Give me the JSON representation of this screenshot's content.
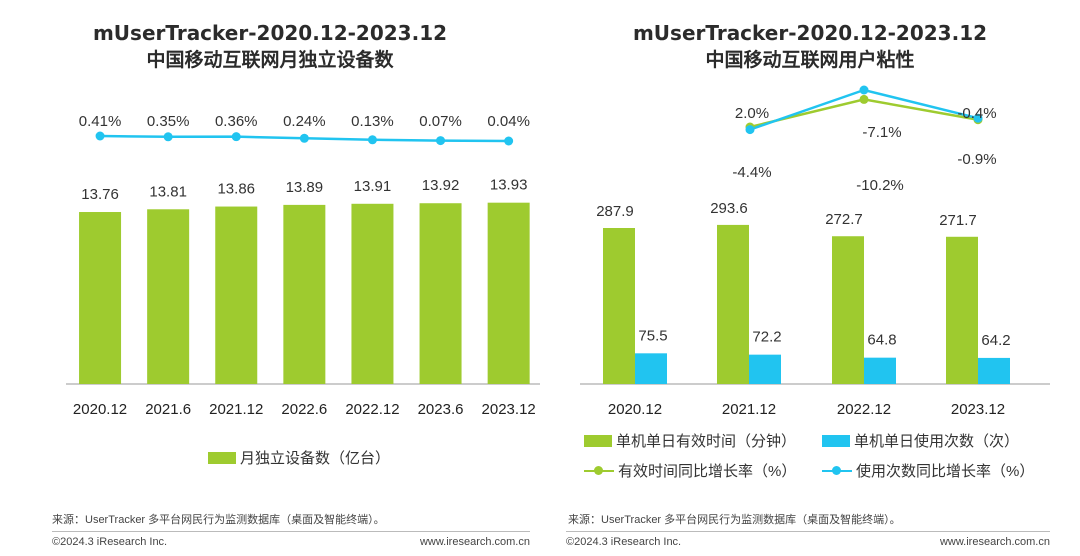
{
  "colors": {
    "bar_green": "#9ECB2F",
    "bar_blue": "#21C4F0",
    "line_green": "#9ECB2F",
    "line_blue": "#21C4F0"
  },
  "left": {
    "title_line1": "mUserTracker-2020.12-2023.12",
    "title_line2": "中国移动互联网月独立设备数",
    "legend": "月独立设备数（亿台）",
    "source": "来源：UserTracker 多平台网民行为监测数据库（桌面及智能终端）。",
    "copyright": "©2024.3 iResearch Inc.",
    "website": "www.iresearch.com.cn"
  },
  "right": {
    "title_line1": "mUserTracker-2020.12-2023.12",
    "title_line2": "中国移动互联网用户粘性",
    "legend_bar1": "单机单日有效时间（分钟）",
    "legend_bar2": "单机单日使用次数（次）",
    "legend_line1": "有效时间同比增长率（%）",
    "legend_line2": "使用次数同比增长率（%）",
    "source": "来源：UserTracker 多平台网民行为监测数据库（桌面及智能终端）。",
    "copyright": "©2024.3 iResearch Inc.",
    "website": "www.iresearch.com.cn"
  },
  "chart_data": [
    {
      "type": "bar",
      "title": "mUserTracker-2020.12-2023.12 中国移动互联网月独立设备数",
      "categories": [
        "2020.12",
        "2021.6",
        "2021.12",
        "2022.6",
        "2022.12",
        "2023.6",
        "2023.12"
      ],
      "series": [
        {
          "name": "月独立设备数（亿台）",
          "type": "bar",
          "values": [
            13.76,
            13.81,
            13.86,
            13.89,
            13.91,
            13.92,
            13.93
          ],
          "labels": [
            "13.76",
            "13.81",
            "13.86",
            "13.89",
            "13.91",
            "13.92",
            "13.93"
          ]
        },
        {
          "type": "line",
          "values": [
            0.41,
            0.35,
            0.36,
            0.24,
            0.13,
            0.07,
            0.04
          ],
          "labels": [
            "0.41%",
            "0.35%",
            "0.36%",
            "0.24%",
            "0.13%",
            "0.07%",
            "0.04%"
          ]
        }
      ],
      "legend_position": "bottom",
      "grid": false
    },
    {
      "type": "bar",
      "title": "mUserTracker-2020.12-2023.12 中国移动互联网用户粘性",
      "categories": [
        "2020.12",
        "2021.12",
        "2022.12",
        "2023.12"
      ],
      "series": [
        {
          "name": "单机单日有效时间（分钟）",
          "type": "bar",
          "values": [
            287.9,
            293.6,
            272.7,
            271.7
          ],
          "labels": [
            "287.9",
            "293.6",
            "272.7",
            "271.7"
          ]
        },
        {
          "name": "单机单日使用次数（次）",
          "type": "bar",
          "values": [
            75.5,
            72.2,
            64.8,
            64.2
          ],
          "labels": [
            "75.5",
            "72.2",
            "64.8",
            "64.2"
          ]
        },
        {
          "name": "有效时间同比增长率（%）",
          "type": "line",
          "values": [
            2.0,
            null,
            -7.1,
            -0.4
          ],
          "labels": [
            "2.0%",
            "",
            "-7.1%",
            "-0.4%"
          ]
        },
        {
          "name": "使用次数同比增长率（%）",
          "type": "line",
          "values": [
            -4.4,
            null,
            -10.2,
            -0.9
          ],
          "labels": [
            "-4.4%",
            "",
            "-10.2%",
            "-0.9%"
          ]
        }
      ],
      "legend_position": "bottom",
      "grid": false
    }
  ]
}
